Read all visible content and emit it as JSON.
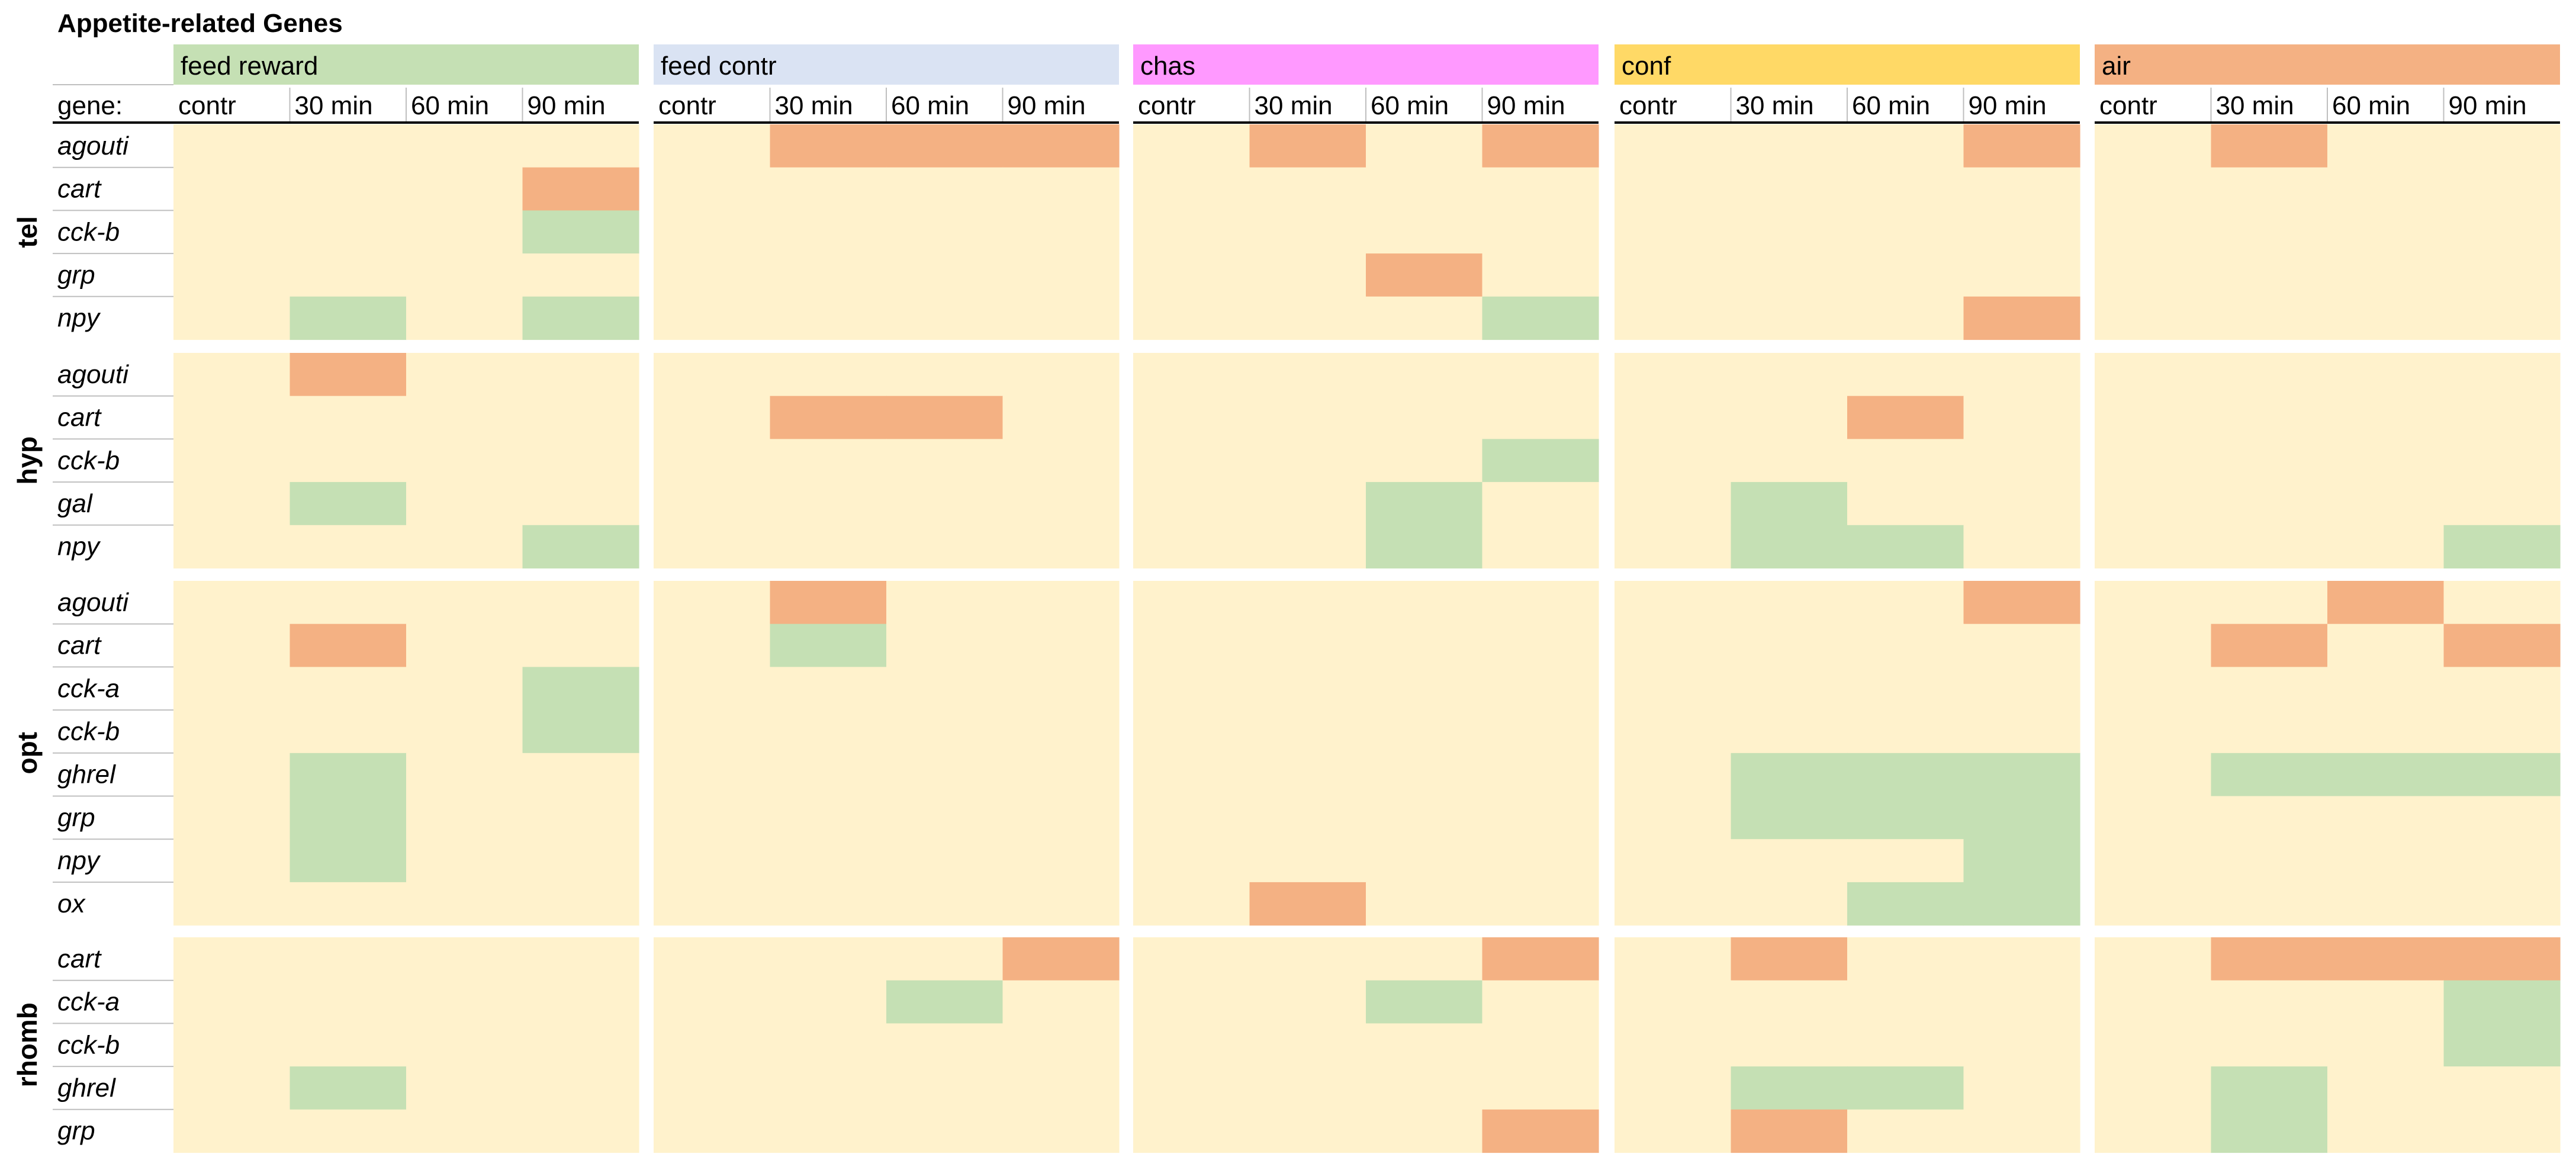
{
  "chart_data": {
    "type": "heatmap",
    "title": "Appetite-related Genes",
    "gene_header": "gene:",
    "time_labels": [
      "contr",
      "30 min",
      "60 min",
      "90 min"
    ],
    "colors": {
      "neutral": "#FFF2CC",
      "up": "#F4B183",
      "down": "#C5E0B4",
      "divider": "#BFBFBF",
      "header_rule": "#000000"
    },
    "legend_note": "cell values: 0 = no change, 1 = up (orange), -1 = down (green)",
    "conditions": [
      {
        "name": "feed reward",
        "color": "#C5E0B4"
      },
      {
        "name": "feed contr",
        "color": "#DAE3F3"
      },
      {
        "name": "chas",
        "color": "#FF99FF"
      },
      {
        "name": "conf",
        "color": "#FFD966"
      },
      {
        "name": "air",
        "color": "#F4B183"
      }
    ],
    "regions": [
      {
        "name": "tel",
        "genes": [
          "agouti",
          "cart",
          "cck-b",
          "grp",
          "npy"
        ],
        "values": [
          [
            [
              0,
              0,
              0,
              0
            ],
            [
              0,
              1,
              1,
              1
            ],
            [
              0,
              1,
              0,
              1
            ],
            [
              0,
              0,
              0,
              1
            ],
            [
              0,
              1,
              0,
              0
            ]
          ],
          [
            [
              0,
              0,
              0,
              1
            ],
            [
              0,
              0,
              0,
              0
            ],
            [
              0,
              0,
              0,
              0
            ],
            [
              0,
              0,
              0,
              0
            ],
            [
              0,
              0,
              0,
              0
            ]
          ],
          [
            [
              0,
              0,
              0,
              -1
            ],
            [
              0,
              0,
              0,
              0
            ],
            [
              0,
              0,
              0,
              0
            ],
            [
              0,
              0,
              0,
              0
            ],
            [
              0,
              0,
              0,
              0
            ]
          ],
          [
            [
              0,
              0,
              0,
              0
            ],
            [
              0,
              0,
              0,
              0
            ],
            [
              0,
              0,
              1,
              0
            ],
            [
              0,
              0,
              0,
              0
            ],
            [
              0,
              0,
              0,
              0
            ]
          ],
          [
            [
              0,
              -1,
              0,
              -1
            ],
            [
              0,
              0,
              0,
              0
            ],
            [
              0,
              0,
              0,
              -1
            ],
            [
              0,
              0,
              0,
              1
            ],
            [
              0,
              0,
              0,
              0
            ]
          ]
        ]
      },
      {
        "name": "hyp",
        "genes": [
          "agouti",
          "cart",
          "cck-b",
          "gal",
          "npy"
        ],
        "values": [
          [
            [
              0,
              1,
              0,
              0
            ],
            [
              0,
              0,
              0,
              0
            ],
            [
              0,
              0,
              0,
              0
            ],
            [
              0,
              0,
              0,
              0
            ],
            [
              0,
              0,
              0,
              0
            ]
          ],
          [
            [
              0,
              0,
              0,
              0
            ],
            [
              0,
              1,
              1,
              0
            ],
            [
              0,
              0,
              0,
              0
            ],
            [
              0,
              0,
              1,
              0
            ],
            [
              0,
              0,
              0,
              0
            ]
          ],
          [
            [
              0,
              0,
              0,
              0
            ],
            [
              0,
              0,
              0,
              0
            ],
            [
              0,
              0,
              0,
              -1
            ],
            [
              0,
              0,
              0,
              0
            ],
            [
              0,
              0,
              0,
              0
            ]
          ],
          [
            [
              0,
              -1,
              0,
              0
            ],
            [
              0,
              0,
              0,
              0
            ],
            [
              0,
              0,
              -1,
              0
            ],
            [
              0,
              -1,
              0,
              0
            ],
            [
              0,
              0,
              0,
              0
            ]
          ],
          [
            [
              0,
              0,
              0,
              -1
            ],
            [
              0,
              0,
              0,
              0
            ],
            [
              0,
              0,
              -1,
              0
            ],
            [
              0,
              -1,
              -1,
              0
            ],
            [
              0,
              0,
              0,
              -1
            ]
          ]
        ]
      },
      {
        "name": "opt",
        "genes": [
          "agouti",
          "cart",
          "cck-a",
          "cck-b",
          "ghrel",
          "grp",
          "npy",
          "ox"
        ],
        "values": [
          [
            [
              0,
              0,
              0,
              0
            ],
            [
              0,
              1,
              0,
              0
            ],
            [
              0,
              0,
              0,
              0
            ],
            [
              0,
              0,
              0,
              1
            ],
            [
              0,
              0,
              1,
              0
            ]
          ],
          [
            [
              0,
              1,
              0,
              0
            ],
            [
              0,
              -1,
              0,
              0
            ],
            [
              0,
              0,
              0,
              0
            ],
            [
              0,
              0,
              0,
              0
            ],
            [
              0,
              1,
              0,
              1
            ]
          ],
          [
            [
              0,
              0,
              0,
              -1
            ],
            [
              0,
              0,
              0,
              0
            ],
            [
              0,
              0,
              0,
              0
            ],
            [
              0,
              0,
              0,
              0
            ],
            [
              0,
              0,
              0,
              0
            ]
          ],
          [
            [
              0,
              0,
              0,
              -1
            ],
            [
              0,
              0,
              0,
              0
            ],
            [
              0,
              0,
              0,
              0
            ],
            [
              0,
              0,
              0,
              0
            ],
            [
              0,
              0,
              0,
              0
            ]
          ],
          [
            [
              0,
              -1,
              0,
              0
            ],
            [
              0,
              0,
              0,
              0
            ],
            [
              0,
              0,
              0,
              0
            ],
            [
              0,
              -1,
              -1,
              -1
            ],
            [
              0,
              -1,
              -1,
              -1
            ]
          ],
          [
            [
              0,
              -1,
              0,
              0
            ],
            [
              0,
              0,
              0,
              0
            ],
            [
              0,
              0,
              0,
              0
            ],
            [
              0,
              -1,
              -1,
              -1
            ],
            [
              0,
              0,
              0,
              0
            ]
          ],
          [
            [
              0,
              -1,
              0,
              0
            ],
            [
              0,
              0,
              0,
              0
            ],
            [
              0,
              0,
              0,
              0
            ],
            [
              0,
              0,
              0,
              -1
            ],
            [
              0,
              0,
              0,
              0
            ]
          ],
          [
            [
              0,
              0,
              0,
              0
            ],
            [
              0,
              0,
              0,
              0
            ],
            [
              0,
              1,
              0,
              0
            ],
            [
              0,
              0,
              -1,
              -1
            ],
            [
              0,
              0,
              0,
              0
            ]
          ]
        ]
      },
      {
        "name": "rhomb",
        "genes": [
          "cart",
          "cck-a",
          "cck-b",
          "ghrel",
          "grp"
        ],
        "values": [
          [
            [
              0,
              0,
              0,
              0
            ],
            [
              0,
              0,
              0,
              1
            ],
            [
              0,
              0,
              0,
              1
            ],
            [
              0,
              1,
              0,
              0
            ],
            [
              0,
              1,
              1,
              1
            ]
          ],
          [
            [
              0,
              0,
              0,
              0
            ],
            [
              0,
              0,
              -1,
              0
            ],
            [
              0,
              0,
              -1,
              0
            ],
            [
              0,
              0,
              0,
              0
            ],
            [
              0,
              0,
              0,
              -1
            ]
          ],
          [
            [
              0,
              0,
              0,
              0
            ],
            [
              0,
              0,
              0,
              0
            ],
            [
              0,
              0,
              0,
              0
            ],
            [
              0,
              0,
              0,
              0
            ],
            [
              0,
              0,
              0,
              -1
            ]
          ],
          [
            [
              0,
              -1,
              0,
              0
            ],
            [
              0,
              0,
              0,
              0
            ],
            [
              0,
              0,
              0,
              0
            ],
            [
              0,
              -1,
              -1,
              0
            ],
            [
              0,
              -1,
              0,
              0
            ]
          ],
          [
            [
              0,
              0,
              0,
              0
            ],
            [
              0,
              0,
              0,
              0
            ],
            [
              0,
              0,
              0,
              1
            ],
            [
              0,
              1,
              0,
              0
            ],
            [
              0,
              -1,
              0,
              0
            ]
          ]
        ]
      }
    ]
  }
}
